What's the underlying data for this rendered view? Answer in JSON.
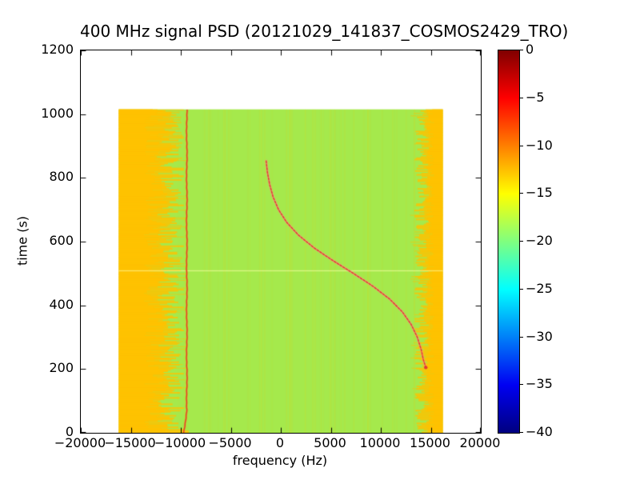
{
  "figure": {
    "background": "#ffffff"
  },
  "chart_data": {
    "type": "heatmap",
    "subtype": "spectrogram",
    "title": "400 MHz signal PSD (20121029_141837_COSMOS2429_TRO)",
    "xlabel": "frequency (Hz)",
    "ylabel": "time (s)",
    "xlim": [
      -20000,
      20000
    ],
    "ylim": [
      0,
      1200
    ],
    "grid": false,
    "xticks": {
      "values": [
        -20000,
        -15000,
        -10000,
        -5000,
        0,
        5000,
        10000,
        15000,
        20000
      ],
      "labels": [
        "−20000",
        "−15000",
        "−10000",
        "−5000",
        "0",
        "5000",
        "10000",
        "15000",
        "20000"
      ]
    },
    "yticks": {
      "values": [
        0,
        200,
        400,
        600,
        800,
        1000,
        1200
      ],
      "labels": [
        "0",
        "200",
        "400",
        "600",
        "800",
        "1000",
        "1200"
      ]
    },
    "colorbar": {
      "vmin": -40,
      "vmax": 0,
      "ticks": {
        "values": [
          0,
          -5,
          -10,
          -15,
          -20,
          -25,
          -30,
          -35,
          -40
        ],
        "labels": [
          "0",
          "−5",
          "−10",
          "−15",
          "−20",
          "−25",
          "−30",
          "−35",
          "−40"
        ]
      },
      "colormap": "jet",
      "colormap_stops": [
        [
          0,
          "#000080"
        ],
        [
          0.125,
          "#0000f2"
        ],
        [
          0.375,
          "#00ffff"
        ],
        [
          0.625,
          "#ffff00"
        ],
        [
          0.875,
          "#ff0000"
        ],
        [
          1,
          "#800000"
        ]
      ]
    },
    "data_extent": {
      "freq_hz": [
        -16200,
        16200
      ],
      "time_s": [
        0,
        1015
      ]
    },
    "background_level": {
      "db": -18,
      "color": "#a5e94c"
    },
    "noise_bands": {
      "left": {
        "freq_outer": -16200,
        "freq_inner_mean": -11300,
        "db": -12
      },
      "right": {
        "freq_inner_mean": 14000,
        "freq_outer": 16200,
        "db": -12
      },
      "color": "#ffc200"
    },
    "carrier_line": {
      "freq_hz": -9400,
      "time_range_s": [
        0,
        1015
      ],
      "db": -3,
      "color": "#e63c2b"
    },
    "doppler_track": {
      "db": -4,
      "color": "#e23b33",
      "glow_color": "#ff9486",
      "points_time_freq": [
        [
          853,
          -1460
        ],
        [
          820,
          -1350
        ],
        [
          780,
          -1120
        ],
        [
          740,
          -770
        ],
        [
          700,
          -220
        ],
        [
          660,
          600
        ],
        [
          620,
          1780
        ],
        [
          580,
          3340
        ],
        [
          540,
          5230
        ],
        [
          500,
          7270
        ],
        [
          460,
          9210
        ],
        [
          420,
          10870
        ],
        [
          380,
          12140
        ],
        [
          340,
          13040
        ],
        [
          300,
          13650
        ],
        [
          260,
          14050
        ],
        [
          230,
          14250
        ],
        [
          205,
          14500
        ]
      ]
    },
    "artifact_line_time_s": 510
  }
}
